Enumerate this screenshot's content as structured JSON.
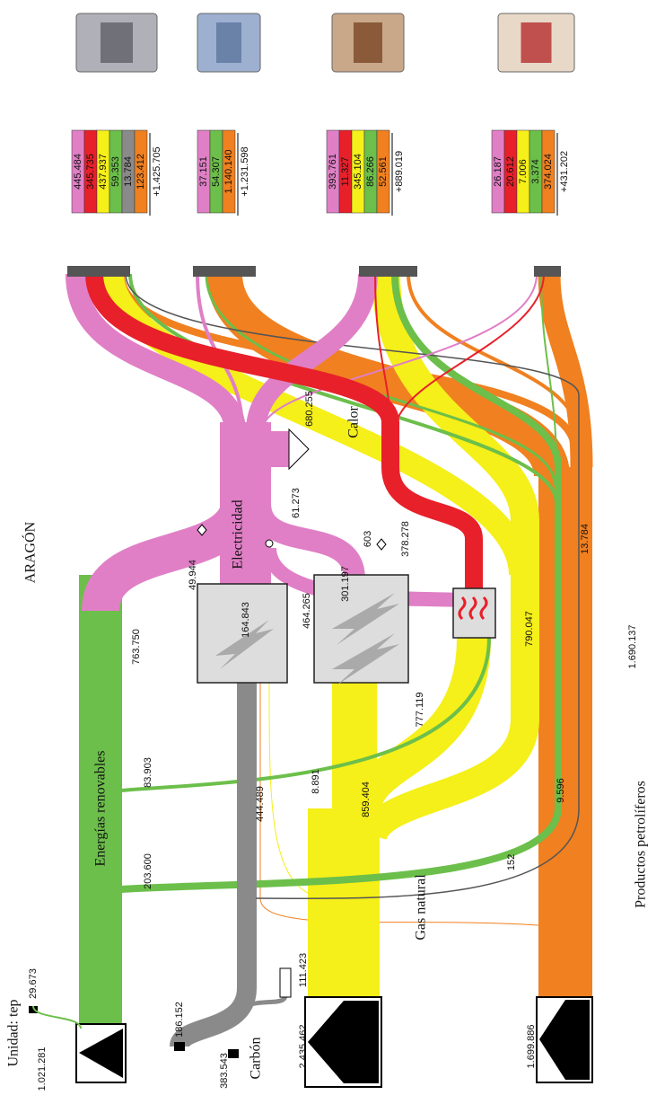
{
  "title": "ARAGÓN",
  "unit": "Unidad: tep",
  "nodes": {
    "renovables": "Energías renovables",
    "carbon": "Carbón",
    "gas": "Gas natural",
    "petroleo": "Productos petrolíferos",
    "electricidad": "Electricidad",
    "calor": "Calor"
  },
  "flow_labels": [
    "29.673",
    "1.021.281",
    "186.152",
    "383.543",
    "111.423",
    "2.435.462",
    "1.699.886",
    "203.600",
    "83.903",
    "763.750",
    "444.489",
    "164.843",
    "8.891",
    "859.404",
    "464.265",
    "777.119",
    "301.197",
    "49.944",
    "61.273",
    "680.255",
    "603",
    "378.278",
    "790.047",
    "9.596",
    "13.784",
    "1.690.137",
    "152"
  ],
  "sectors": [
    {
      "cells": [
        {
          "value": "445.484",
          "color": "#e07fc6"
        },
        {
          "value": "345.735",
          "color": "#e8202a"
        },
        {
          "value": "437.937",
          "color": "#f5ef1a"
        },
        {
          "value": "59.353",
          "color": "#6cbf4a"
        },
        {
          "value": "13.784",
          "color": "#8a8a8a"
        },
        {
          "value": "123.412",
          "color": "#f08020"
        }
      ],
      "total": "+1.425.705"
    },
    {
      "cells": [
        {
          "value": "37.151",
          "color": "#e07fc6"
        },
        {
          "value": "54.307",
          "color": "#6cbf4a"
        },
        {
          "value": "1.140.140",
          "color": "#f08020"
        }
      ],
      "total": "+1.231.598"
    },
    {
      "cells": [
        {
          "value": "393.761",
          "color": "#e07fc6"
        },
        {
          "value": "11.327",
          "color": "#e8202a"
        },
        {
          "value": "345.104",
          "color": "#f5ef1a"
        },
        {
          "value": "86.266",
          "color": "#6cbf4a"
        },
        {
          "value": "52.561",
          "color": "#f08020"
        }
      ],
      "total": "+889.019"
    },
    {
      "cells": [
        {
          "value": "26.187",
          "color": "#e07fc6"
        },
        {
          "value": "20.612",
          "color": "#e8202a"
        },
        {
          "value": "7.006",
          "color": "#f5ef1a"
        },
        {
          "value": "3.374",
          "color": "#6cbf4a"
        },
        {
          "value": "374.024",
          "color": "#f08020"
        }
      ],
      "total": "+431.202"
    }
  ]
}
